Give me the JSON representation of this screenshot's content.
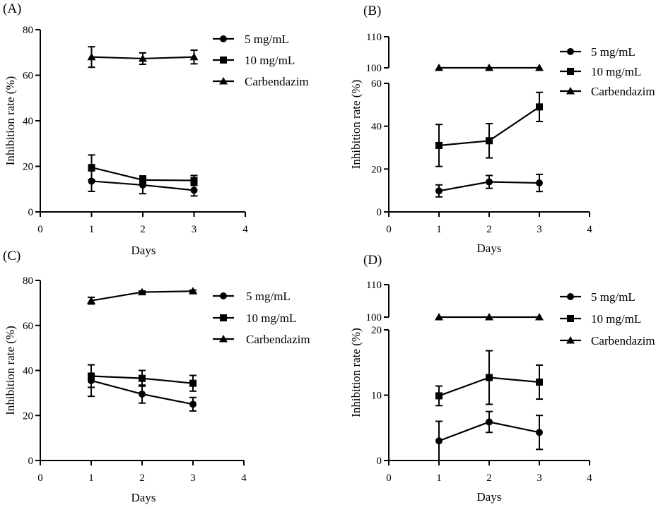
{
  "chart_data": [
    {
      "type": "line",
      "panel_label": "(A)",
      "title": "",
      "xlabel": "Days",
      "ylabel": "Inhibition rate (%)",
      "xlim": [
        0,
        4
      ],
      "xticks": [
        0,
        1,
        2,
        3,
        4
      ],
      "ylim": [
        0,
        80
      ],
      "yticks": [
        0,
        20,
        40,
        60,
        80
      ],
      "broken_axis": false,
      "grid": false,
      "legend_position": "top-right",
      "x": [
        1,
        2,
        3
      ],
      "series": [
        {
          "name": "5 mg/mL",
          "marker": "circle",
          "values": [
            13.5,
            11.8,
            9.5
          ],
          "errors": [
            4.5,
            3.8,
            2.5
          ]
        },
        {
          "name": "10 mg/mL",
          "marker": "square",
          "values": [
            19.5,
            14.0,
            13.8
          ],
          "errors": [
            5.5,
            1.8,
            2.2
          ]
        },
        {
          "name": "Carbendazim",
          "marker": "triangle",
          "values": [
            68.0,
            67.3,
            68.0
          ],
          "errors": [
            4.5,
            2.5,
            3.0
          ]
        }
      ]
    },
    {
      "type": "line",
      "panel_label": "(B)",
      "title": "",
      "xlabel": "Days",
      "ylabel": "Inhibition rate (%)",
      "xlim": [
        0,
        4
      ],
      "xticks": [
        0,
        1,
        2,
        3,
        4
      ],
      "ylim": [
        0,
        110
      ],
      "broken_axis": true,
      "lower_range": [
        0,
        60
      ],
      "lower_yticks": [
        0,
        20,
        40,
        60
      ],
      "upper_range": [
        100,
        110
      ],
      "upper_yticks": [
        100,
        110
      ],
      "grid": false,
      "legend_position": "top-right",
      "x": [
        1,
        2,
        3
      ],
      "series": [
        {
          "name": "5 mg/mL",
          "marker": "circle",
          "values": [
            9.8,
            14.0,
            13.5
          ],
          "errors": [
            2.8,
            3.0,
            4.0
          ]
        },
        {
          "name": "10 mg/mL",
          "marker": "square",
          "values": [
            31.0,
            33.2,
            49.0
          ],
          "errors": [
            9.8,
            8.0,
            6.8
          ]
        },
        {
          "name": "Carbendazim",
          "marker": "triangle",
          "values": [
            100,
            100,
            100
          ],
          "errors": [
            0,
            0,
            0
          ]
        }
      ]
    },
    {
      "type": "line",
      "panel_label": "(C)",
      "title": "",
      "xlabel": "Days",
      "ylabel": "Inhibition rate (%)",
      "xlim": [
        0,
        4
      ],
      "xticks": [
        0,
        1,
        2,
        3,
        4
      ],
      "ylim": [
        0,
        80
      ],
      "yticks": [
        0,
        20,
        40,
        60,
        80
      ],
      "broken_axis": false,
      "grid": false,
      "legend_position": "top-right",
      "x": [
        1,
        2,
        3
      ],
      "series": [
        {
          "name": "5 mg/mL",
          "marker": "circle",
          "values": [
            35.5,
            29.5,
            25.0
          ],
          "errors": [
            7.0,
            4.0,
            3.0
          ]
        },
        {
          "name": "10 mg/mL",
          "marker": "square",
          "values": [
            37.5,
            36.5,
            34.3
          ],
          "errors": [
            5.0,
            3.5,
            3.5
          ]
        },
        {
          "name": "Carbendazim",
          "marker": "triangle",
          "values": [
            71.0,
            74.8,
            75.2
          ],
          "errors": [
            1.5,
            0.5,
            0.5
          ]
        }
      ]
    },
    {
      "type": "line",
      "panel_label": "(D)",
      "title": "",
      "xlabel": "Days",
      "ylabel": "Inhibition rate (%)",
      "xlim": [
        0,
        4
      ],
      "xticks": [
        0,
        1,
        2,
        3,
        4
      ],
      "ylim": [
        0,
        110
      ],
      "broken_axis": true,
      "lower_range": [
        0,
        20
      ],
      "lower_yticks": [
        0,
        10,
        20
      ],
      "upper_range": [
        100,
        110
      ],
      "upper_yticks": [
        100,
        110
      ],
      "grid": false,
      "legend_position": "top-right",
      "x": [
        1,
        2,
        3
      ],
      "series": [
        {
          "name": "5 mg/mL",
          "marker": "circle",
          "values": [
            3.0,
            5.9,
            4.3
          ],
          "errors": [
            3.0,
            1.6,
            2.6
          ]
        },
        {
          "name": "10 mg/mL",
          "marker": "square",
          "values": [
            9.9,
            12.7,
            12.0
          ],
          "errors": [
            1.5,
            4.1,
            2.6
          ]
        },
        {
          "name": "Carbendazim",
          "marker": "triangle",
          "values": [
            100,
            100,
            100
          ],
          "errors": [
            0,
            0,
            0
          ]
        }
      ]
    }
  ]
}
